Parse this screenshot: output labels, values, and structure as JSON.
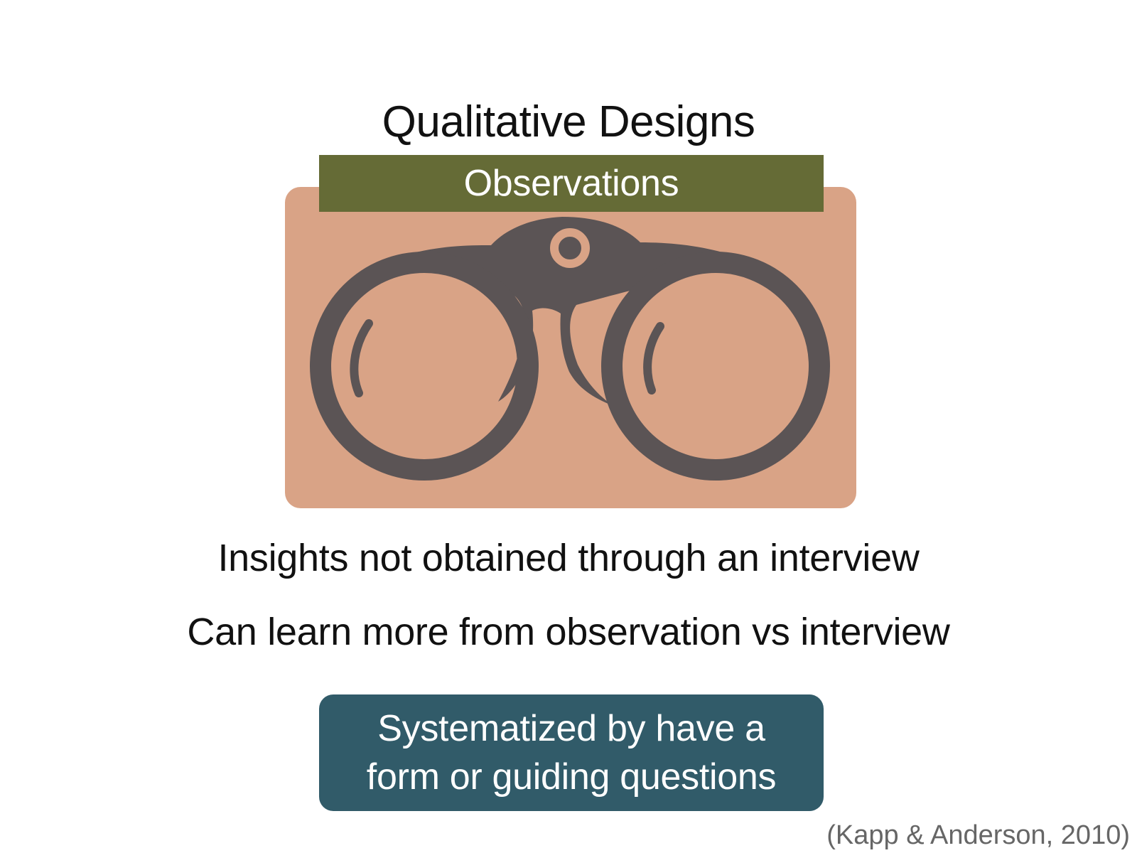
{
  "slide": {
    "title": "Qualitative Designs",
    "banner_label": "Observations",
    "image": {
      "icon": "binoculars-icon",
      "background_color": "#d9a386",
      "icon_color": "#5b5455"
    },
    "statements": [
      "Insights not obtained through an interview",
      "Can learn more from observation vs interview"
    ],
    "callout": {
      "lines": [
        "Systematized by have a",
        "form or guiding questions"
      ]
    },
    "citation": "(Kapp & Anderson, 2010)"
  },
  "colors": {
    "banner": "#656b36",
    "callout": "#315b69",
    "citation_text": "#666666"
  }
}
